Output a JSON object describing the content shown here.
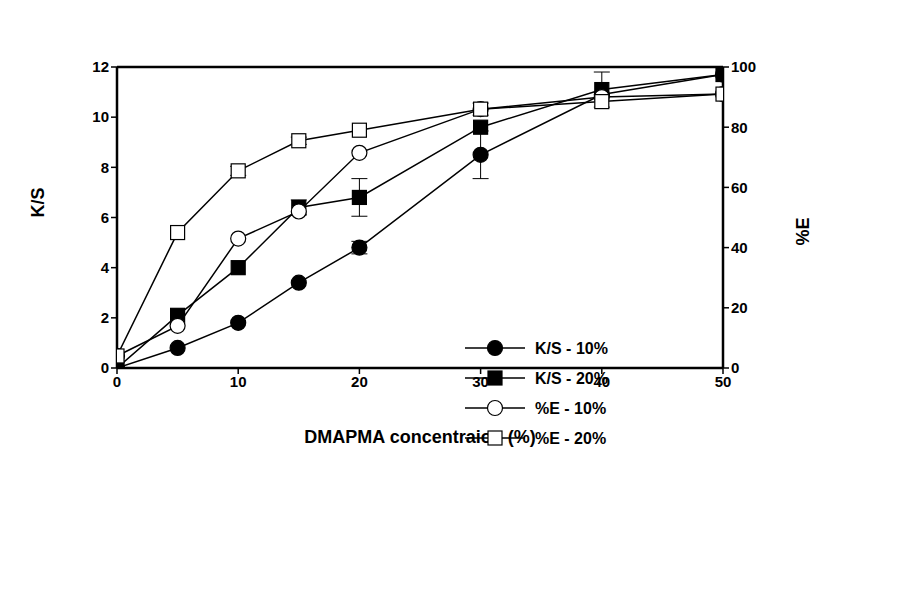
{
  "chart_data": {
    "type": "line",
    "x_label": "DMAPMA concentraion (%)",
    "y_label": "K/S",
    "y2_label": "%E",
    "x": [
      0,
      5,
      10,
      15,
      20,
      30,
      40,
      50
    ],
    "xlim": [
      0,
      50
    ],
    "xticks": [
      0,
      10,
      20,
      30,
      40,
      50
    ],
    "ylim": [
      0,
      12
    ],
    "yticks": [
      0,
      2,
      4,
      6,
      8,
      10,
      12
    ],
    "y2lim": [
      0,
      100
    ],
    "y2ticks": [
      0,
      20,
      40,
      60,
      80,
      100
    ],
    "grid": false,
    "legend": "lower right",
    "series": [
      {
        "name": "K/S - 10%",
        "color": "#000000",
        "marker": "circle",
        "values": [
          0,
          0.8,
          1.8,
          3.4,
          4.8,
          8.5,
          10.9,
          11.7
        ],
        "errors": [
          null,
          null,
          null,
          null,
          0.25,
          0.95,
          null,
          null
        ]
      },
      {
        "name": "K/S - 20%",
        "color": "#000000",
        "marker": "square",
        "values": [
          0,
          2.1,
          4.0,
          6.4,
          6.8,
          9.6,
          11.1,
          11.7
        ],
        "errors": [
          null,
          null,
          null,
          0.3,
          0.75,
          null,
          0.7,
          null
        ]
      },
      {
        "name": "%E - 10%",
        "color": "#000000",
        "marker": "circle_open",
        "axis": "y2",
        "values": [
          4,
          14,
          43,
          52,
          71.5,
          86,
          90,
          91
        ],
        "errors": [
          null,
          null,
          null,
          null,
          null,
          null,
          null,
          null
        ]
      },
      {
        "name": "%E - 20%",
        "color": "#000000",
        "marker": "square_open",
        "axis": "y2",
        "values": [
          4,
          45,
          65.5,
          75.5,
          79,
          86,
          88.5,
          91
        ],
        "errors": [
          null,
          null,
          1.5,
          1.2,
          null,
          2,
          null,
          null
        ]
      }
    ]
  }
}
